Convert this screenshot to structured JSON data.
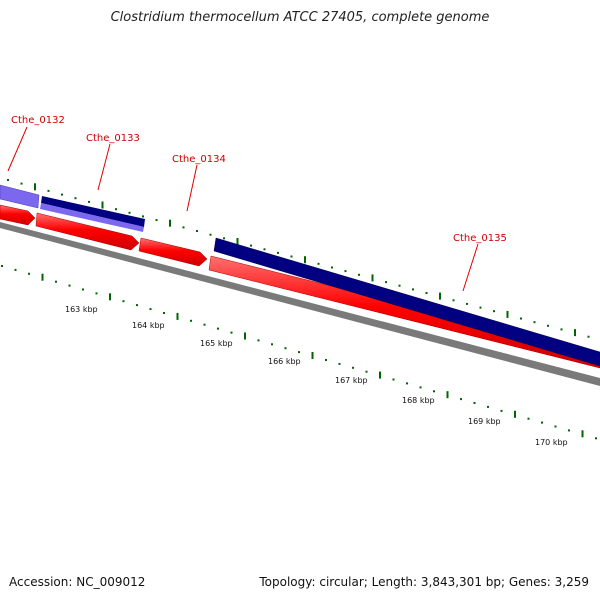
{
  "title": "Clostridium thermocellum ATCC 27405, complete genome",
  "footer": {
    "accession": "Accession: NC_009012",
    "summary": "Topology: circular; Length: 3,843,301 bp; Genes: 3,259"
  },
  "colors": {
    "gene_label": "#cc0000",
    "forward_cds": "#ff0000",
    "reverse_cds_dark": "#000080",
    "reverse_cds_light": "#6a5acd",
    "backbone": "#808080",
    "tick": "#006400"
  },
  "gene_labels": [
    "Cthe_0132",
    "Cthe_0133",
    "Cthe_0134",
    "Cthe_0135"
  ],
  "kbp_labels": [
    "163 kbp",
    "164 kbp",
    "165 kbp",
    "166 kbp",
    "167 kbp",
    "168 kbp",
    "169 kbp",
    "170 kbp"
  ]
}
